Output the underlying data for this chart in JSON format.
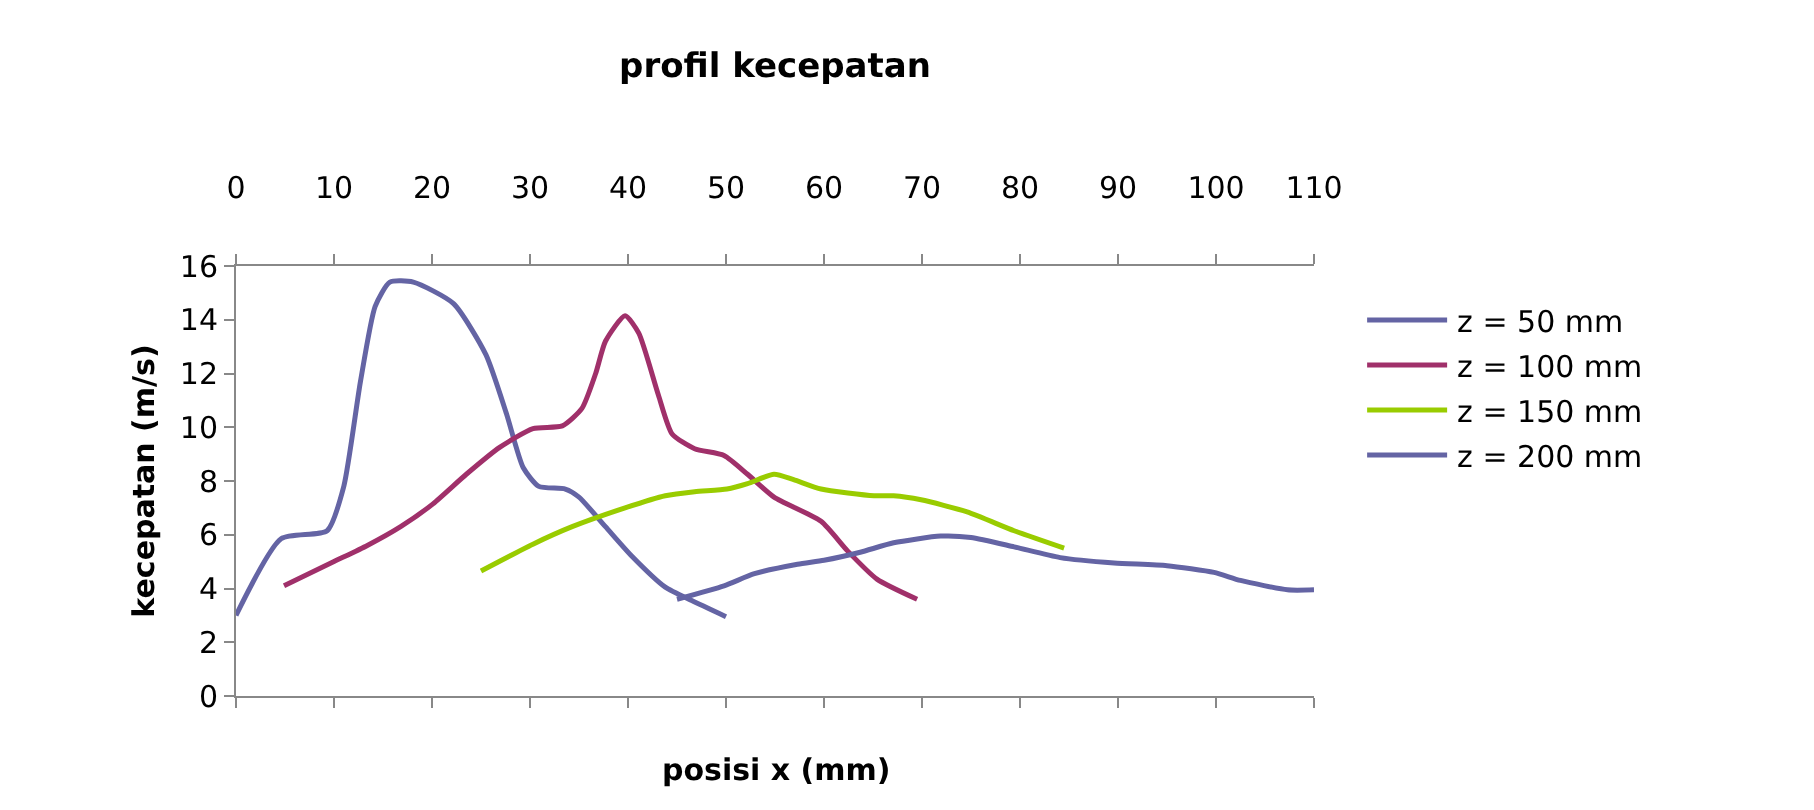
{
  "chart_data": {
    "type": "line",
    "title": "profil kecepatan",
    "xlabel": "posisi x (mm)",
    "ylabel": "kecepatan (m/s)",
    "xlim": [
      0,
      110
    ],
    "xticks": [
      0,
      10,
      20,
      30,
      40,
      50,
      60,
      70,
      80,
      90,
      100,
      110
    ],
    "ylim": [
      0,
      16
    ],
    "yticks": [
      0,
      2,
      4,
      6,
      8,
      10,
      12,
      14,
      16
    ],
    "grid": false,
    "legend": "right",
    "marker": "none",
    "line_style": "solid",
    "series": [
      {
        "name": "z = 50 mm",
        "color": "#6464a4",
        "x": [
          0,
          4.6,
          9.3,
          11,
          12.7,
          14.2,
          15.7,
          18.1,
          22.2,
          25.5,
          27.6,
          29.3,
          30.9,
          33.6,
          35,
          37.7,
          40.4,
          43.8,
          46.5,
          50
        ],
        "values": [
          3,
          5.85,
          6.15,
          7.8,
          11.7,
          14.5,
          15.4,
          15.4,
          14.6,
          12.7,
          10.5,
          8.5,
          7.8,
          7.7,
          7.4,
          6.3,
          5.2,
          4.05,
          3.55,
          2.95
        ]
      },
      {
        "name": "z = 100 mm",
        "color": "#a0306a",
        "x": [
          4.9,
          10,
          13.4,
          16.8,
          20.1,
          23.5,
          26.9,
          30.3,
          33.3,
          35.3,
          36.7,
          37.7,
          39.7,
          41.1,
          43.1,
          44.5,
          46.8,
          49.8,
          52.2,
          54.9,
          59.7,
          62.4,
          65.4,
          69.5
        ],
        "values": [
          4.1,
          5,
          5.6,
          6.3,
          7.15,
          8.25,
          9.25,
          9.95,
          10.05,
          10.7,
          12,
          13.2,
          14.15,
          13.5,
          11.2,
          9.75,
          9.2,
          8.95,
          8.25,
          7.4,
          6.5,
          5.4,
          4.35,
          3.6
        ]
      },
      {
        "name": "z = 150 mm",
        "color": "#99cc00",
        "x": [
          25,
          30.3,
          34.3,
          39.7,
          43.8,
          46.8,
          50.1,
          52.2,
          54.9,
          56.9,
          59.7,
          65.1,
          67.1,
          69.9,
          74.6,
          79.4,
          84.5
        ],
        "values": [
          4.65,
          5.65,
          6.3,
          7,
          7.45,
          7.6,
          7.7,
          7.9,
          8.25,
          8.05,
          7.7,
          7.45,
          7.45,
          7.3,
          6.85,
          6.15,
          5.5
        ]
      },
      {
        "name": "z = 200 mm",
        "color": "#6464a4",
        "x": [
          45,
          49.8,
          52.9,
          57.3,
          60,
          63.7,
          67.1,
          71.9,
          75,
          79.4,
          84.1,
          89.6,
          95,
          99.8,
          102.5,
          107.3,
          110
        ],
        "values": [
          3.6,
          4.1,
          4.55,
          4.9,
          5.05,
          5.35,
          5.7,
          5.95,
          5.9,
          5.55,
          5.15,
          4.95,
          4.85,
          4.6,
          4.3,
          3.95,
          3.95
        ]
      }
    ]
  }
}
